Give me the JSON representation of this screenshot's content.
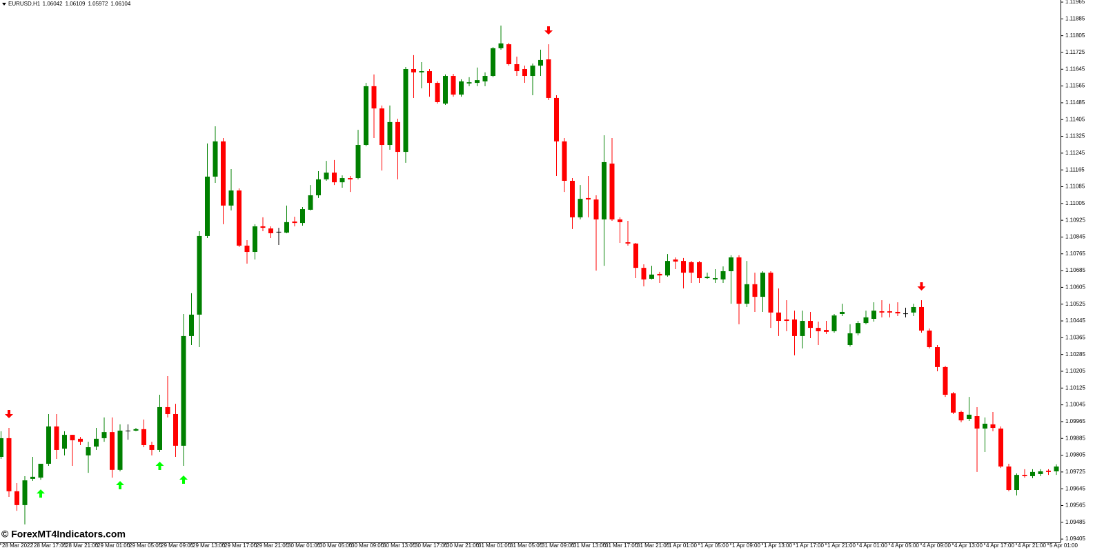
{
  "chart_data": {
    "type": "candlestick",
    "symbol": "EURUSD,H1",
    "ohlc_info": [
      1.06042,
      1.06109,
      1.05972,
      1.06104
    ],
    "watermark": "© ForexMT4Indicators.com",
    "up_color": "#008000",
    "down_color": "#ff0000",
    "doji_color": "#000000",
    "buy_signal_color": "#00ff00",
    "sell_signal_color": "#ff0000",
    "ylim": [
      1.09389,
      1.11975
    ],
    "yticks": [
      1.11965,
      1.11885,
      1.11805,
      1.11725,
      1.11645,
      1.11565,
      1.11485,
      1.11405,
      1.11325,
      1.11245,
      1.11165,
      1.11085,
      1.11005,
      1.10925,
      1.10845,
      1.10765,
      1.10685,
      1.10605,
      1.10525,
      1.10445,
      1.10365,
      1.10285,
      1.10205,
      1.10125,
      1.10045,
      1.09965,
      1.09885,
      1.09805,
      1.09725,
      1.09645,
      1.09565,
      1.09485,
      1.09405
    ],
    "categories": [
      "28 Mar 2022",
      null,
      null,
      null,
      "28 Mar 17:00",
      null,
      null,
      null,
      "28 Mar 21:00",
      null,
      null,
      null,
      "29 Mar 01:00",
      null,
      null,
      null,
      "29 Mar 05:00",
      null,
      null,
      null,
      "29 Mar 09:00",
      null,
      null,
      null,
      "29 Mar 13:00",
      null,
      null,
      null,
      "29 Mar 17:00",
      null,
      null,
      null,
      "29 Mar 21:00",
      null,
      null,
      null,
      "30 Mar 01:00",
      null,
      null,
      null,
      "30 Mar 05:00",
      null,
      null,
      null,
      "30 Mar 09:00",
      null,
      null,
      null,
      "30 Mar 13:00",
      null,
      null,
      null,
      "30 Mar 17:00",
      null,
      null,
      null,
      "30 Mar 21:00",
      null,
      null,
      null,
      "31 Mar 01:00",
      null,
      null,
      null,
      "31 Mar 05:00",
      null,
      null,
      null,
      "31 Mar 09:00",
      null,
      null,
      null,
      "31 Mar 13:00",
      null,
      null,
      null,
      "31 Mar 17:00",
      null,
      null,
      null,
      "31 Mar 21:00",
      null,
      null,
      null,
      "1 Apr 01:00",
      null,
      null,
      null,
      "1 Apr 05:00",
      null,
      null,
      null,
      "1 Apr 09:00",
      null,
      null,
      null,
      "1 Apr 13:00",
      null,
      null,
      null,
      "1 Apr 17:00",
      null,
      null,
      null,
      "1 Apr 21:00",
      null,
      null,
      null,
      "4 Apr 01:00",
      null,
      null,
      null,
      "4 Apr 05:00",
      null,
      null,
      null,
      "4 Apr 09:00",
      null,
      null,
      null,
      "4 Apr 13:00",
      null,
      null,
      null,
      "4 Apr 17:00",
      null,
      null,
      null,
      "4 Apr 21:00",
      null,
      null,
      null,
      "5 Apr 01:00",
      null
    ],
    "open": [
      1.09797,
      1.09886,
      1.09633,
      1.09567,
      1.09692,
      1.09698,
      1.09764,
      1.09942,
      1.09836,
      1.09902,
      1.09883,
      1.09804,
      1.09846,
      1.09886,
      1.09915,
      1.09735,
      1.09922,
      1.09922,
      1.09929,
      1.09853,
      1.0983,
      1.10034,
      1.10001,
      1.0985,
      1.10373,
      1.10475,
      1.1085,
      1.11133,
      1.11301,
      1.10995,
      1.11067,
      1.10804,
      1.10774,
      1.10896,
      1.10886,
      1.1087,
      1.10866,
      1.10919,
      1.10912,
      1.10975,
      1.11044,
      1.1112,
      1.11152,
      1.11106,
      1.11126,
      1.11126,
      1.11284,
      1.11564,
      1.11458,
      1.11284,
      1.11393,
      1.11251,
      1.11646,
      1.1163,
      1.11636,
      1.1158,
      1.11481,
      1.11613,
      1.11524,
      1.11577,
      1.1158,
      1.11587,
      1.11613,
      1.11745,
      1.11764,
      1.11669,
      1.11646,
      1.11613,
      1.11662,
      1.11692,
      1.11508,
      1.11301,
      1.11113,
      1.10939,
      1.11031,
      1.11024,
      1.10929,
      1.11195,
      1.10929,
      1.1082,
      1.10814,
      1.10698,
      1.10646,
      1.10669,
      1.10662,
      1.10738,
      1.10731,
      1.10725,
      1.10725,
      1.10649,
      1.10643,
      1.10643,
      1.10682,
      1.10748,
      1.10527,
      1.1062,
      1.1056,
      1.10675,
      1.10485,
      1.10452,
      1.10452,
      1.10373,
      1.10445,
      1.10412,
      1.10402,
      1.10396,
      1.10478,
      1.1033,
      1.10386,
      1.10435,
      1.10455,
      1.10491,
      1.10491,
      1.10488,
      1.10481,
      1.10485,
      1.10511,
      1.10399,
      1.1032,
      1.10225,
      1.101,
      1.10011,
      1.09978,
      1.09991,
      1.09932,
      1.09952,
      1.09932,
      1.09751,
      1.09639,
      1.09711,
      1.09705,
      1.09715,
      1.09731,
      1.09728
    ],
    "high": [
      1.09919,
      1.09935,
      1.09672,
      1.09705,
      1.09797,
      1.09764,
      1.10001,
      1.10001,
      1.09919,
      1.09902,
      1.09892,
      1.09869,
      1.09935,
      1.09985,
      1.09985,
      1.09952,
      1.09952,
      1.09935,
      1.09975,
      1.09869,
      1.10093,
      1.10182,
      1.1005,
      1.10478,
      1.10577,
      1.10873,
      1.11291,
      1.11373,
      1.11317,
      1.11169,
      1.11077,
      1.1083,
      1.10906,
      1.10939,
      1.10896,
      1.10889,
      1.10995,
      1.10942,
      1.10988,
      1.11093,
      1.11159,
      1.11208,
      1.11212,
      1.11139,
      1.11136,
      1.11356,
      1.1158,
      1.1162,
      1.11472,
      1.11472,
      1.11409,
      1.11656,
      1.11712,
      1.11679,
      1.11646,
      1.11587,
      1.1162,
      1.11623,
      1.11597,
      1.11607,
      1.11653,
      1.1163,
      1.11751,
      1.11853,
      1.11771,
      1.11705,
      1.11662,
      1.11672,
      1.11738,
      1.11764,
      1.11521,
      1.11317,
      1.11126,
      1.11093,
      1.11136,
      1.11044,
      1.1133,
      1.11317,
      1.10939,
      1.10922,
      1.10817,
      1.10715,
      1.10708,
      1.10679,
      1.10764,
      1.10748,
      1.10745,
      1.10731,
      1.10731,
      1.10675,
      1.10692,
      1.10705,
      1.10758,
      1.10758,
      1.10731,
      1.10675,
      1.10682,
      1.10682,
      1.106,
      1.10544,
      1.10494,
      1.10494,
      1.10488,
      1.10442,
      1.10445,
      1.10478,
      1.10527,
      1.10429,
      1.10445,
      1.10494,
      1.10534,
      1.10544,
      1.10527,
      1.10534,
      1.10508,
      1.10527,
      1.10544,
      1.10409,
      1.1033,
      1.10231,
      1.10106,
      1.10017,
      1.10083,
      1.10034,
      1.09985,
      1.10011,
      1.09942,
      1.09764,
      1.09718,
      1.09738,
      1.09738,
      1.09738,
      1.09738,
      1.09761
    ],
    "low": [
      1.09787,
      1.09606,
      1.0954,
      1.09475,
      1.09682,
      1.09688,
      1.09754,
      1.09787,
      1.09804,
      1.09754,
      1.09853,
      1.09721,
      1.0983,
      1.09869,
      1.09698,
      1.09728,
      1.09879,
      1.09919,
      1.09843,
      1.09804,
      1.0982,
      1.09985,
      1.09797,
      1.09754,
      1.1033,
      1.1032,
      1.1084,
      1.11103,
      1.10906,
      1.10972,
      1.10797,
      1.10718,
      1.10738,
      1.10873,
      1.1084,
      1.10807,
      1.10863,
      1.10896,
      1.10899,
      1.10972,
      1.11031,
      1.11113,
      1.11093,
      1.1108,
      1.1106,
      1.1112,
      1.11278,
      1.11317,
      1.11162,
      1.11261,
      1.1112,
      1.11199,
      1.11508,
      1.11554,
      1.11514,
      1.11481,
      1.11475,
      1.11514,
      1.11514,
      1.11564,
      1.11564,
      1.11564,
      1.11607,
      1.11738,
      1.11662,
      1.11613,
      1.1158,
      1.11521,
      1.11613,
      1.11498,
      1.11136,
      1.1106,
      1.10883,
      1.10929,
      1.10939,
      1.10685,
      1.10708,
      1.10922,
      1.10817,
      1.10804,
      1.10649,
      1.1061,
      1.10643,
      1.10626,
      1.10656,
      1.10692,
      1.106,
      1.10626,
      1.10626,
      1.10646,
      1.10626,
      1.10626,
      1.10527,
      1.10429,
      1.10511,
      1.10488,
      1.10488,
      1.10412,
      1.10373,
      1.10396,
      1.10281,
      1.10314,
      1.10363,
      1.1033,
      1.10383,
      1.10389,
      1.10468,
      1.10323,
      1.10376,
      1.10429,
      1.10442,
      1.10462,
      1.10462,
      1.10468,
      1.10462,
      1.10468,
      1.10389,
      1.10314,
      1.10205,
      1.10083,
      1.10001,
      1.09962,
      1.09968,
      1.09725,
      1.0982,
      1.09919,
      1.09744,
      1.09633,
      1.09613,
      1.09698,
      1.09695,
      1.09705,
      1.09711,
      1.09711
    ],
    "close": [
      1.09886,
      1.09633,
      1.09567,
      1.09685,
      1.09702,
      1.09764,
      1.09942,
      1.0983,
      1.09902,
      1.09876,
      1.09869,
      1.09843,
      1.09883,
      1.09915,
      1.09735,
      1.09922,
      1.09922,
      1.09929,
      1.09853,
      1.0983,
      1.10034,
      1.10001,
      1.0985,
      1.10373,
      1.10475,
      1.1085,
      1.11133,
      1.11301,
      1.10995,
      1.11067,
      1.10804,
      1.10774,
      1.10896,
      1.10889,
      1.10863,
      1.1087,
      1.10916,
      1.10912,
      1.10978,
      1.11044,
      1.1112,
      1.11152,
      1.11106,
      1.11126,
      1.1112,
      1.11284,
      1.11564,
      1.11458,
      1.11284,
      1.11393,
      1.11251,
      1.11646,
      1.1163,
      1.11636,
      1.1158,
      1.11488,
      1.11613,
      1.11524,
      1.11587,
      1.11583,
      1.11593,
      1.11613,
      1.11745,
      1.11768,
      1.11669,
      1.11636,
      1.11613,
      1.11662,
      1.11689,
      1.11508,
      1.11301,
      1.11113,
      1.10939,
      1.11027,
      1.11024,
      1.10929,
      1.11202,
      1.10929,
      1.10916,
      1.10814,
      1.10698,
      1.10643,
      1.10666,
      1.10662,
      1.10731,
      1.10728,
      1.10675,
      1.10675,
      1.10649,
      1.10656,
      1.10649,
      1.10682,
      1.10748,
      1.10527,
      1.1062,
      1.1056,
      1.10675,
      1.10485,
      1.10445,
      1.10445,
      1.10373,
      1.10445,
      1.10412,
      1.10396,
      1.10393,
      1.10471,
      1.10488,
      1.10386,
      1.10435,
      1.10462,
      1.10494,
      1.10485,
      1.10485,
      1.10481,
      1.10481,
      1.10511,
      1.10399,
      1.1032,
      1.10225,
      1.10093,
      1.10008,
      1.09971,
      1.09998,
      1.09932,
      1.09955,
      1.09935,
      1.09751,
      1.09639,
      1.09711,
      1.09705,
      1.09725,
      1.09728,
      1.09725,
      1.09751
    ],
    "buy_signals": [
      5,
      15,
      20,
      23
    ],
    "sell_signals": [
      1,
      69,
      116
    ]
  }
}
